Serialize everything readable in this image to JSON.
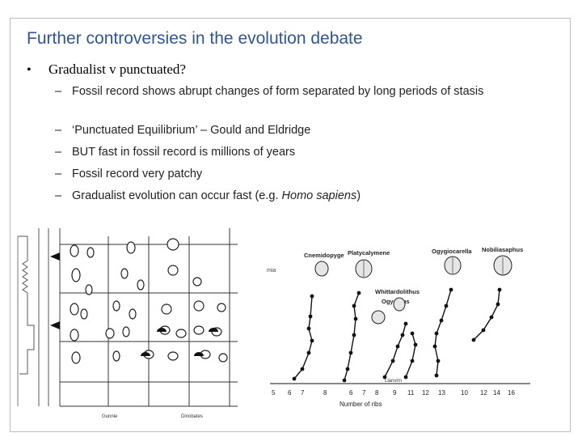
{
  "slide": {
    "title": "Further controversies in the evolution debate",
    "bullet": "Gradualist v punctuated?",
    "subpoints": [
      {
        "text": "Fossil record shows abrupt changes of form separated by long periods of stasis"
      },
      {
        "text": "‘Punctuated Equilibrium’ – Gould and Eldridge"
      },
      {
        "text": "BUT fast in fossil record is millions of years"
      },
      {
        "text": "Fossil record very patchy"
      },
      {
        "text_pre": "Gradualist evolution can occur fast (e.g. ",
        "text_em": "Homo sapiens",
        "text_post": ")"
      }
    ],
    "dash": "–",
    "bullet_symbol": "•"
  },
  "left_figure": {
    "column_labels": [
      "Gunnie",
      "Dinobates"
    ]
  },
  "right_figure": {
    "genus_labels": [
      "Cnemidopyge",
      "Platycalymene",
      "Ogygiocarella",
      "Nobiliasaphus",
      "Whittardolithus",
      "Ogyginus"
    ],
    "side_label": "mia",
    "stage_label": "Llanvirn",
    "x_axis_label": "Number of ribs",
    "x_ticks": [
      "5",
      "6",
      "7",
      "8",
      "6",
      "7",
      "8",
      "9",
      "11",
      "12",
      "13",
      "10",
      "12",
      "14",
      "16"
    ]
  },
  "colors": {
    "title": "#2f5597",
    "text": "#222222",
    "frame": "#bdbdbd"
  }
}
